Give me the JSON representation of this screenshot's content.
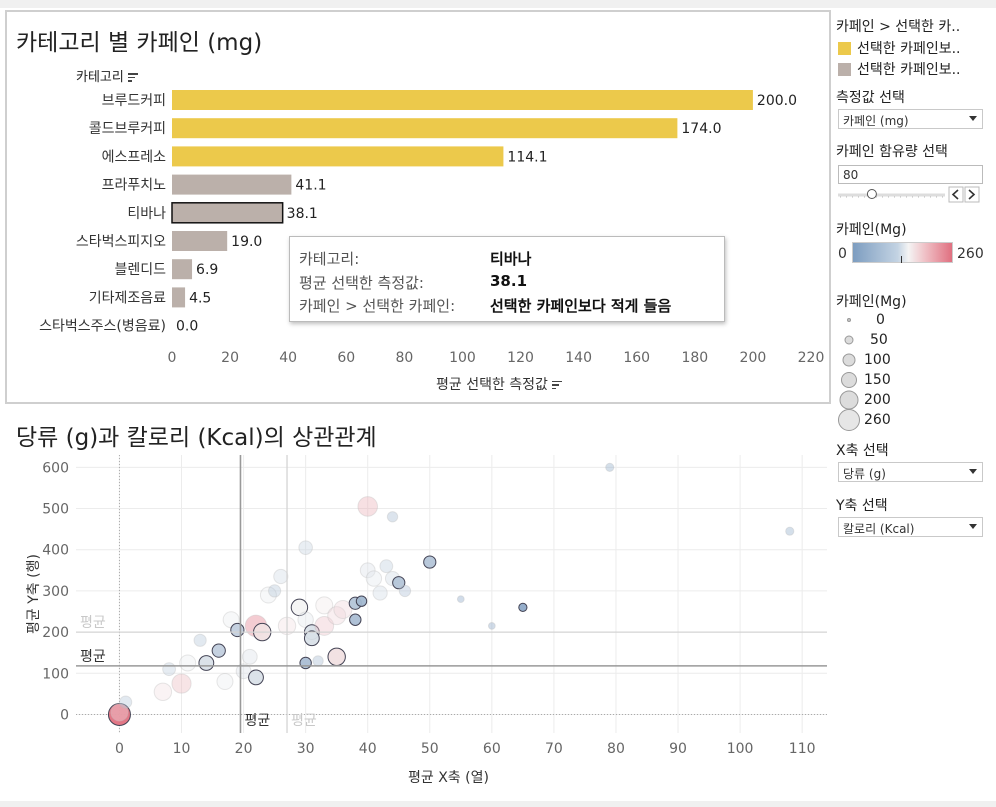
{
  "bar_chart": {
    "title": "카테고리 별 카페인 (mg)",
    "category_header": "카테고리",
    "x_axis_title": "평균 선택한 측정값",
    "tooltip": {
      "rows": [
        {
          "key": "카테고리:",
          "value": "티바나"
        },
        {
          "key": "평균 선택한 측정값:",
          "value": "38.1"
        },
        {
          "key": "카페인 > 선택한 카페인:",
          "value": "선택한 카페인보다 적게 들음"
        }
      ]
    }
  },
  "scatter": {
    "title": "당류 (g)과 칼로리 (Kcal)의 상관관계",
    "x_axis_title": "평균 X축 (열)",
    "y_axis_title": "평균 Y축 (행)",
    "avg_label": "평균"
  },
  "sidebar": {
    "color_legend_title": "카페인 > 선택한 카..",
    "color_legend_items": [
      {
        "label": "선택한 카페인보..",
        "color": "#ecc94b"
      },
      {
        "label": "선택한 카페인보..",
        "color": "#bbb0aa"
      }
    ],
    "measure_title": "측정값 선택",
    "measure_value": "카페인 (mg)",
    "caffeine_param_title": "카페인 함유량 선택",
    "caffeine_param_value": "80",
    "caffeine_param_fraction": 0.31,
    "gradient_title": "카페인(Mg)",
    "gradient_min": "0",
    "gradient_max": "260",
    "size_title": "카페인(Mg)",
    "size_items": [
      "0",
      "50",
      "100",
      "150",
      "200",
      "260"
    ],
    "x_select_title": "X축 선택",
    "x_select_value": "당류 (g)",
    "y_select_title": "Y축 선택",
    "y_select_value": "칼로리 (Kcal)"
  },
  "chart_data": [
    {
      "type": "bar",
      "title": "카테고리 별 카페인 (mg)",
      "xlabel": "평균 선택한 측정값",
      "ylabel": "카테고리",
      "xlim": [
        0,
        220
      ],
      "xticks": [
        0,
        20,
        40,
        60,
        80,
        100,
        120,
        140,
        160,
        180,
        200,
        220
      ],
      "categories": [
        "브루드커피",
        "콜드브루커피",
        "에스프레소",
        "프라푸치노",
        "티바나",
        "스타벅스피지오",
        "블렌디드",
        "기타제조음료",
        "스타벅스주스(병음료)"
      ],
      "values": [
        200.0,
        174.0,
        114.1,
        41.1,
        38.1,
        19.0,
        6.9,
        4.5,
        0.0
      ],
      "value_labels": [
        "200.0",
        "174.0",
        "114.1",
        "41.1",
        "38.1",
        "19.0",
        "6.9",
        "4.5",
        "0.0"
      ],
      "group": [
        "above",
        "above",
        "above",
        "below",
        "below",
        "below",
        "below",
        "below",
        "below"
      ],
      "selected": "티바나",
      "colors": {
        "above": "#ecc94b",
        "below": "#bbb0aa"
      }
    },
    {
      "type": "scatter",
      "title": "당류 (g)과 칼로리 (Kcal)의 상관관계",
      "xlabel": "평균 X축 (열)",
      "ylabel": "평균 Y축 (행)",
      "xlim": [
        -7,
        114
      ],
      "ylim": [
        -45,
        630
      ],
      "xticks": [
        0,
        10,
        20,
        30,
        40,
        50,
        60,
        70,
        80,
        90,
        100,
        110
      ],
      "yticks": [
        0,
        100,
        200,
        300,
        400,
        500,
        600
      ],
      "reference_lines": {
        "x_avg": 19.5,
        "x_avg_faint": 27,
        "y_avg": 118,
        "y_avg_faint": 200
      },
      "points": [
        {
          "x": 0,
          "y": 0,
          "c": 260,
          "hi": true
        },
        {
          "x": 0,
          "y": 5,
          "c": 150,
          "hi": false
        },
        {
          "x": 1,
          "y": 30,
          "c": 60,
          "hi": false
        },
        {
          "x": 7,
          "y": 55,
          "c": 150,
          "hi": false
        },
        {
          "x": 8,
          "y": 110,
          "c": 70,
          "hi": false
        },
        {
          "x": 10,
          "y": 75,
          "c": 190,
          "hi": false
        },
        {
          "x": 11,
          "y": 125,
          "c": 120,
          "hi": false
        },
        {
          "x": 13,
          "y": 180,
          "c": 60,
          "hi": false
        },
        {
          "x": 14,
          "y": 125,
          "c": 100,
          "hi": true
        },
        {
          "x": 16,
          "y": 155,
          "c": 75,
          "hi": true
        },
        {
          "x": 17,
          "y": 80,
          "c": 120,
          "hi": false
        },
        {
          "x": 18,
          "y": 230,
          "c": 120,
          "hi": false
        },
        {
          "x": 19,
          "y": 205,
          "c": 75,
          "hi": true
        },
        {
          "x": 20,
          "y": 105,
          "c": 100,
          "hi": false
        },
        {
          "x": 21,
          "y": 140,
          "c": 100,
          "hi": false
        },
        {
          "x": 22,
          "y": 90,
          "c": 100,
          "hi": true
        },
        {
          "x": 22,
          "y": 215,
          "c": 250,
          "hi": false
        },
        {
          "x": 23,
          "y": 200,
          "c": 150,
          "hi": true
        },
        {
          "x": 24,
          "y": 290,
          "c": 120,
          "hi": false
        },
        {
          "x": 25,
          "y": 300,
          "c": 60,
          "hi": false
        },
        {
          "x": 26,
          "y": 335,
          "c": 90,
          "hi": false
        },
        {
          "x": 27,
          "y": 215,
          "c": 150,
          "hi": false
        },
        {
          "x": 29,
          "y": 260,
          "c": 130,
          "hi": true
        },
        {
          "x": 30,
          "y": 125,
          "c": 50,
          "hi": true
        },
        {
          "x": 30,
          "y": 230,
          "c": 110,
          "hi": false
        },
        {
          "x": 30,
          "y": 405,
          "c": 80,
          "hi": false
        },
        {
          "x": 31,
          "y": 200,
          "c": 100,
          "hi": true
        },
        {
          "x": 31,
          "y": 185,
          "c": 100,
          "hi": true
        },
        {
          "x": 32,
          "y": 130,
          "c": 40,
          "hi": false
        },
        {
          "x": 33,
          "y": 215,
          "c": 180,
          "hi": false
        },
        {
          "x": 33,
          "y": 265,
          "c": 140,
          "hi": false
        },
        {
          "x": 35,
          "y": 140,
          "c": 150,
          "hi": true
        },
        {
          "x": 35,
          "y": 240,
          "c": 160,
          "hi": false
        },
        {
          "x": 36,
          "y": 255,
          "c": 160,
          "hi": false
        },
        {
          "x": 38,
          "y": 230,
          "c": 50,
          "hi": true
        },
        {
          "x": 38,
          "y": 270,
          "c": 60,
          "hi": true
        },
        {
          "x": 39,
          "y": 275,
          "c": 40,
          "hi": true
        },
        {
          "x": 40,
          "y": 505,
          "c": 200,
          "hi": false
        },
        {
          "x": 40,
          "y": 350,
          "c": 100,
          "hi": false
        },
        {
          "x": 41,
          "y": 330,
          "c": 110,
          "hi": false
        },
        {
          "x": 42,
          "y": 295,
          "c": 90,
          "hi": false
        },
        {
          "x": 43,
          "y": 360,
          "c": 70,
          "hi": false
        },
        {
          "x": 44,
          "y": 330,
          "c": 90,
          "hi": false
        },
        {
          "x": 44,
          "y": 480,
          "c": 40,
          "hi": false
        },
        {
          "x": 45,
          "y": 320,
          "c": 60,
          "hi": true
        },
        {
          "x": 46,
          "y": 300,
          "c": 50,
          "hi": false
        },
        {
          "x": 50,
          "y": 370,
          "c": 60,
          "hi": true
        },
        {
          "x": 65,
          "y": 260,
          "c": 20,
          "hi": true
        },
        {
          "x": 108,
          "y": 445,
          "c": 20,
          "hi": false
        },
        {
          "x": 79,
          "y": 600,
          "c": 20,
          "hi": false
        },
        {
          "x": 60,
          "y": 215,
          "c": 10,
          "hi": false
        },
        {
          "x": 55,
          "y": 280,
          "c": 10,
          "hi": false
        }
      ]
    }
  ]
}
